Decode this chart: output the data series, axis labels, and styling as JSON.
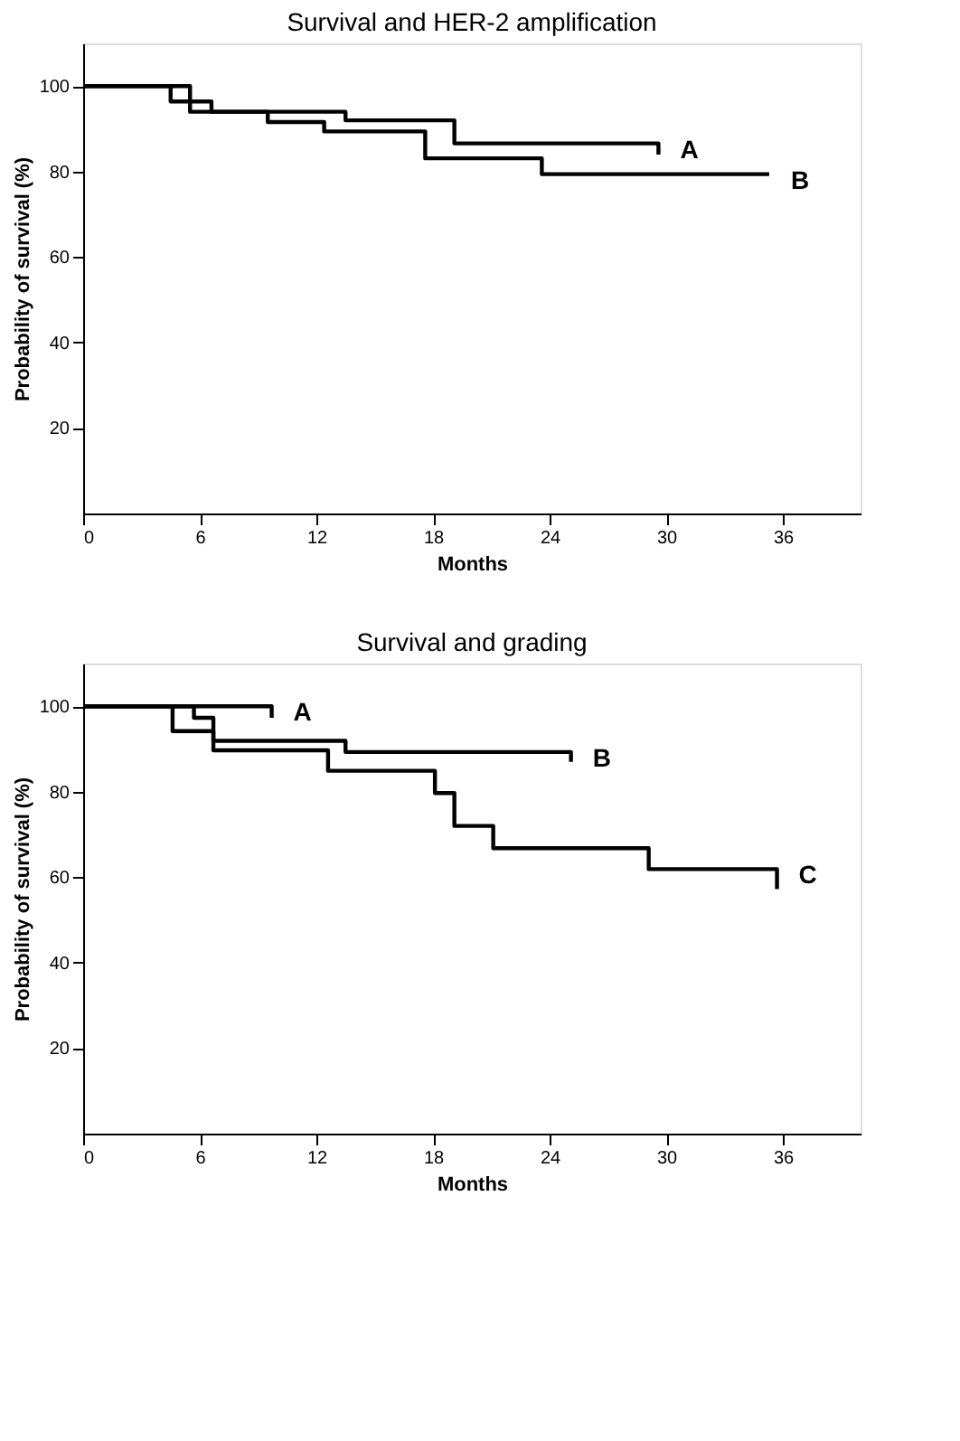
{
  "chart_data": [
    {
      "type": "step",
      "title": "Survival and HER-2 amplification",
      "xlabel": "Months",
      "ylabel": "Probability of survival (%)",
      "xlim": [
        0,
        40
      ],
      "ylim": [
        0,
        110
      ],
      "xticks": [
        0,
        6,
        12,
        18,
        24,
        30,
        36
      ],
      "yticks": [
        20,
        40,
        60,
        80,
        100
      ],
      "grid": false,
      "series": [
        {
          "name": "A",
          "color": "#000000",
          "x": [
            0,
            5.5,
            13.5,
            19.1,
            29.6,
            29.6
          ],
          "values": [
            100,
            94,
            92,
            86.6,
            86.6,
            84
          ]
        },
        {
          "name": "B",
          "color": "#000000",
          "x": [
            0,
            4.5,
            6.6,
            9.5,
            12.4,
            17.6,
            23.6,
            35.3
          ],
          "values": [
            100,
            96.4,
            94,
            91.6,
            89.4,
            83.1,
            79.4,
            79.4
          ]
        }
      ]
    },
    {
      "type": "step",
      "title": "Survival and grading",
      "xlabel": "Months",
      "ylabel": "Probability of survival (%)",
      "xlim": [
        0,
        40
      ],
      "ylim": [
        0,
        110
      ],
      "xticks": [
        0,
        6,
        12,
        18,
        24,
        30,
        36
      ],
      "yticks": [
        20,
        40,
        60,
        80,
        100
      ],
      "grid": false,
      "series": [
        {
          "name": "A",
          "color": "#000000",
          "x": [
            0,
            9.7,
            9.7
          ],
          "values": [
            100,
            100,
            97.3
          ]
        },
        {
          "name": "B",
          "color": "#000000",
          "x": [
            0,
            5.7,
            6.7,
            13.5,
            25.1,
            25.1
          ],
          "values": [
            100,
            97.3,
            91.9,
            89.3,
            89.3,
            87
          ]
        },
        {
          "name": "C",
          "color": "#000000",
          "x": [
            0,
            4.6,
            6.7,
            12.6,
            18.1,
            19.1,
            21.1,
            29.1,
            35.7,
            35.7
          ],
          "values": [
            100,
            94.2,
            89.7,
            84.9,
            79.7,
            72,
            66.8,
            61.9,
            61.9,
            57.2
          ]
        }
      ]
    }
  ]
}
